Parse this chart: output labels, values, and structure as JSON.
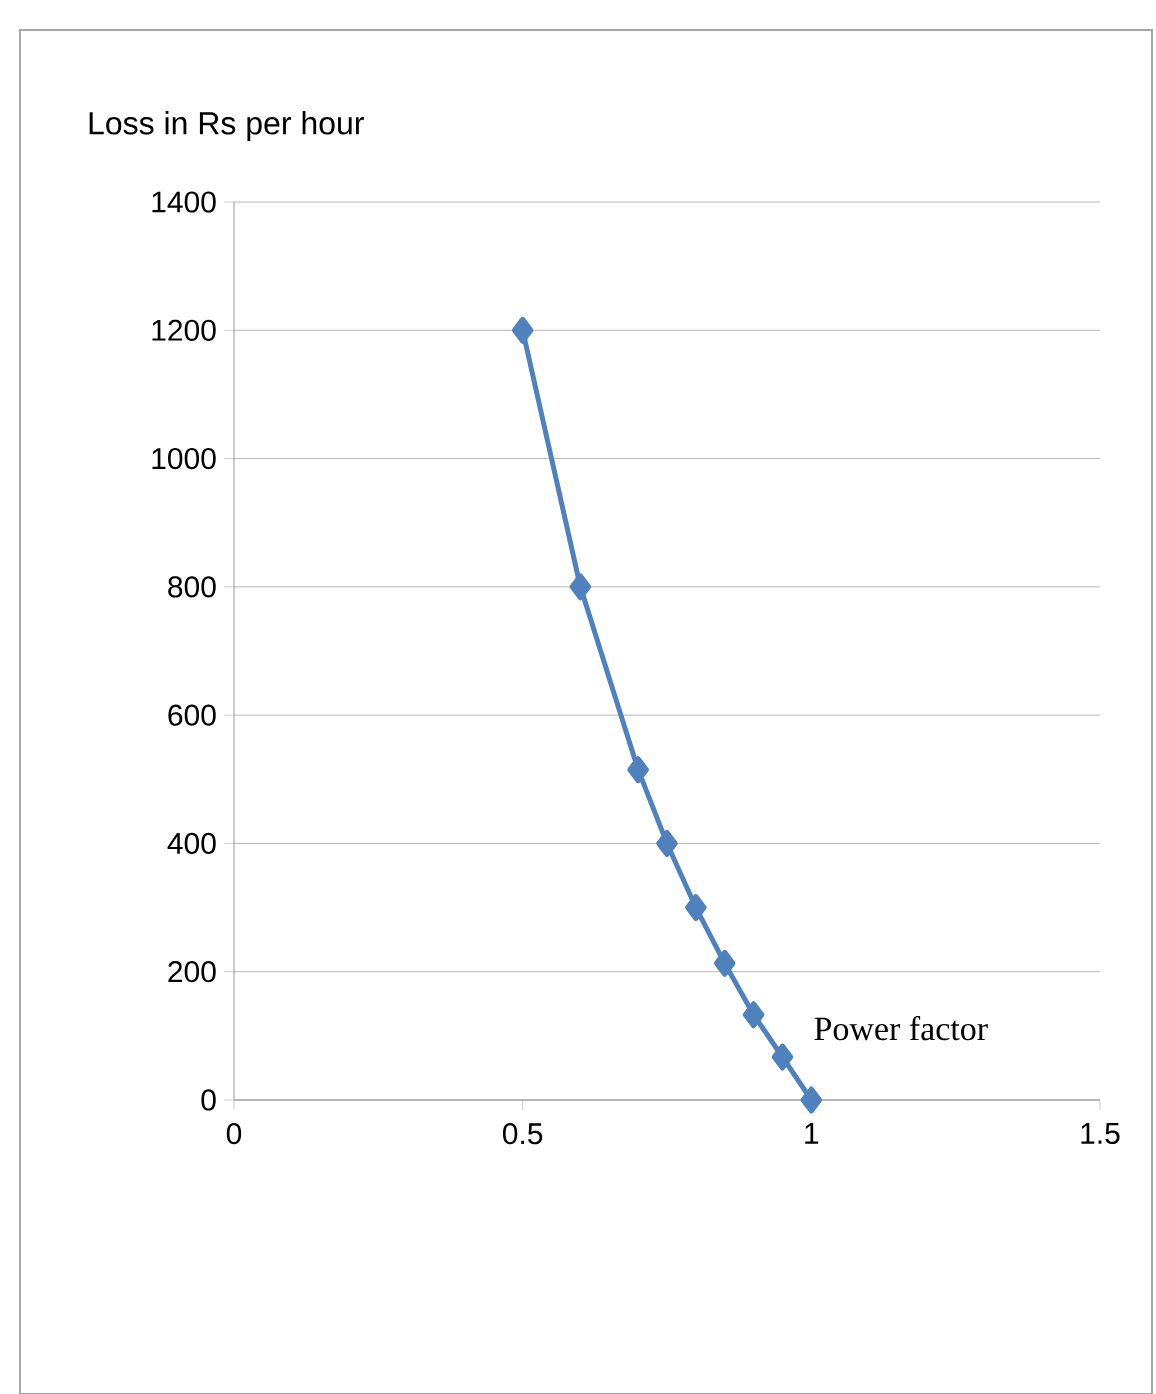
{
  "chart_data": {
    "type": "line",
    "ylabel": "Loss in Rs per hour",
    "xlabel": "Power factor",
    "x": [
      0.5,
      0.6,
      0.7,
      0.75,
      0.8,
      0.85,
      0.9,
      0.95,
      1
    ],
    "series": [
      {
        "color": "#4f81bd",
        "values": [
          1200,
          800,
          515,
          400,
          300,
          213,
          133,
          67,
          0
        ]
      }
    ],
    "xlim": [
      0,
      1.5
    ],
    "ylim": [
      0,
      1400
    ],
    "xticks": [
      0,
      0.5,
      1,
      1.5
    ],
    "yticks": [
      0,
      200,
      400,
      600,
      800,
      1000,
      1200,
      1400
    ],
    "grid": "y",
    "marker": "diamond",
    "line_style": "solid"
  }
}
